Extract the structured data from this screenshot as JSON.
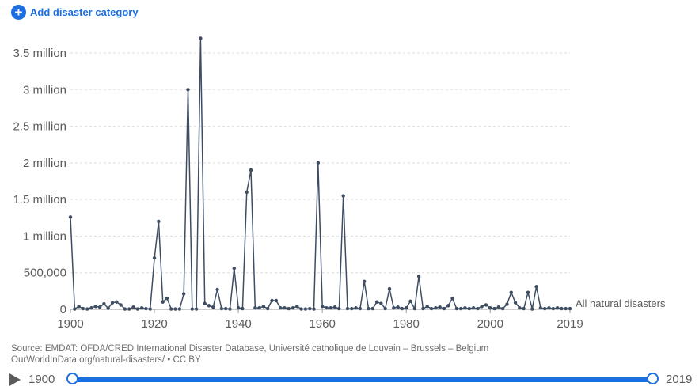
{
  "controls": {
    "add_category_label": "Add disaster category",
    "add_icon": "plus-circle-icon"
  },
  "chart_data": {
    "type": "line",
    "title": "",
    "xlabel": "",
    "ylabel": "",
    "xlim": [
      1900,
      2019
    ],
    "ylim": [
      0,
      3700000
    ],
    "grid": "horizontal dashed",
    "x_ticks": [
      1900,
      1920,
      1940,
      1960,
      1980,
      2000,
      2019
    ],
    "x_tick_labels": [
      "1900",
      "1920",
      "1940",
      "1960",
      "1980",
      "2000",
      "2019"
    ],
    "y_ticks": [
      0,
      500000,
      1000000,
      1500000,
      2000000,
      2500000,
      3000000,
      3500000
    ],
    "y_tick_labels": [
      "0",
      "500,000",
      "1 million",
      "1.5 million",
      "2 million",
      "2.5 million",
      "3 million",
      "3.5 million"
    ],
    "series": [
      {
        "name": "All natural disasters",
        "color": "#3f4d63",
        "x": [
          1900,
          1901,
          1902,
          1903,
          1904,
          1905,
          1906,
          1907,
          1908,
          1909,
          1910,
          1911,
          1912,
          1913,
          1914,
          1915,
          1916,
          1917,
          1918,
          1919,
          1920,
          1921,
          1922,
          1923,
          1924,
          1925,
          1926,
          1927,
          1928,
          1929,
          1930,
          1931,
          1932,
          1933,
          1934,
          1935,
          1936,
          1937,
          1938,
          1939,
          1940,
          1941,
          1942,
          1943,
          1944,
          1945,
          1946,
          1947,
          1948,
          1949,
          1950,
          1951,
          1952,
          1953,
          1954,
          1955,
          1956,
          1957,
          1958,
          1959,
          1960,
          1961,
          1962,
          1963,
          1964,
          1965,
          1966,
          1967,
          1968,
          1969,
          1970,
          1971,
          1972,
          1973,
          1974,
          1975,
          1976,
          1977,
          1978,
          1979,
          1980,
          1981,
          1982,
          1983,
          1984,
          1985,
          1986,
          1987,
          1988,
          1989,
          1990,
          1991,
          1992,
          1993,
          1994,
          1995,
          1996,
          1997,
          1998,
          1999,
          2000,
          2001,
          2002,
          2003,
          2004,
          2005,
          2006,
          2007,
          2008,
          2009,
          2010,
          2011,
          2012,
          2013,
          2014,
          2015,
          2016,
          2017,
          2018,
          2019
        ],
        "values": [
          1260000,
          5000,
          40000,
          10000,
          5000,
          20000,
          40000,
          30000,
          75000,
          15000,
          90000,
          100000,
          60000,
          5000,
          5000,
          30000,
          5000,
          20000,
          10000,
          5000,
          700000,
          1200000,
          100000,
          150000,
          5000,
          5000,
          5000,
          210000,
          3000000,
          5000,
          5000,
          3700000,
          80000,
          50000,
          30000,
          270000,
          10000,
          10000,
          5000,
          560000,
          20000,
          10000,
          1600000,
          1900000,
          20000,
          20000,
          40000,
          10000,
          120000,
          120000,
          20000,
          20000,
          10000,
          20000,
          40000,
          5000,
          5000,
          10000,
          5000,
          2000000,
          40000,
          20000,
          20000,
          30000,
          10000,
          1550000,
          10000,
          10000,
          20000,
          10000,
          380000,
          10000,
          10000,
          100000,
          80000,
          10000,
          280000,
          20000,
          30000,
          10000,
          20000,
          110000,
          10000,
          450000,
          10000,
          40000,
          10000,
          20000,
          30000,
          10000,
          50000,
          150000,
          10000,
          10000,
          20000,
          10000,
          20000,
          10000,
          40000,
          60000,
          20000,
          10000,
          30000,
          10000,
          70000,
          230000,
          90000,
          20000,
          10000,
          230000,
          5000,
          310000,
          20000,
          10000,
          20000,
          10000,
          20000,
          10000,
          10000,
          10000
        ]
      }
    ]
  },
  "source": {
    "line1": "Source: EMDAT: OFDA/CRED International Disaster Database, Université catholique de Louvain – Brussels – Belgium",
    "line2": "OurWorldInData.org/natural-disasters/ • CC BY"
  },
  "timeline": {
    "start_label": "1900",
    "end_label": "2019",
    "play_icon": "play-icon"
  }
}
